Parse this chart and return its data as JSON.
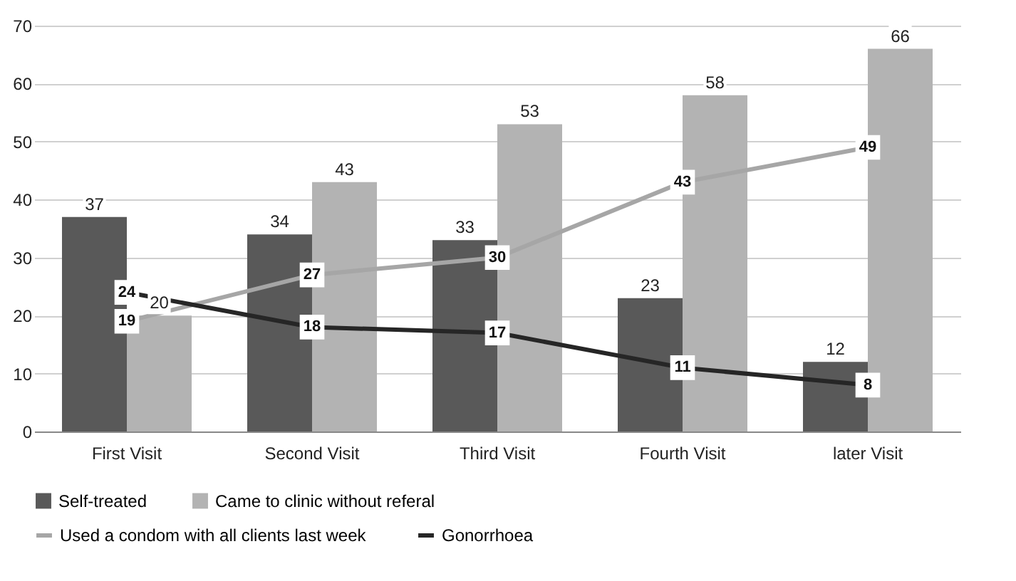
{
  "chart_data": {
    "type": "bar",
    "categories": [
      "First Visit",
      "Second Visit",
      "Third Visit",
      "Fourth Visit",
      "later Visit"
    ],
    "series": [
      {
        "name": "Self-treated",
        "color": "#595959",
        "values": [
          37,
          34,
          33,
          23,
          12
        ]
      },
      {
        "name": "Came to clinic without referal",
        "color": "#b3b3b3",
        "values": [
          20,
          43,
          53,
          58,
          66
        ]
      },
      {
        "name": "Used a condom with all clients last week",
        "type": "line",
        "marker": "square",
        "color": "#a6a6a6",
        "values": [
          19,
          27,
          30,
          43,
          49
        ]
      },
      {
        "name": "Gonorrhoea",
        "type": "line",
        "marker": "square",
        "color": "#262626",
        "values": [
          24,
          18,
          17,
          11,
          8
        ]
      }
    ],
    "ylim": [
      0,
      70
    ],
    "yticks": [
      0,
      10,
      20,
      30,
      40,
      50,
      60,
      70
    ],
    "grid": "y",
    "legend": "bottom",
    "data_labels": true
  }
}
